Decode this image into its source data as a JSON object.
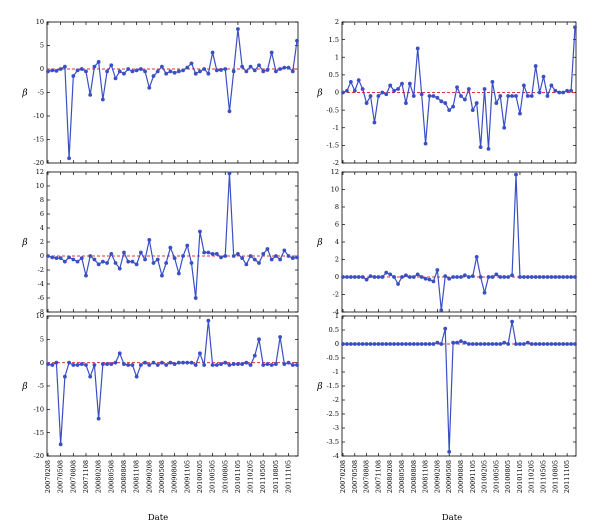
{
  "chart_data": [
    {
      "type": "line",
      "ylabel": "β",
      "ylim": [
        -20,
        10
      ],
      "yticks": [
        10,
        5,
        0,
        -5,
        -10,
        -15,
        -20
      ],
      "reference_line": 0,
      "values": [
        -0.5,
        -0.3,
        -0.4,
        0,
        0.5,
        -19,
        -1.5,
        -0.3,
        0,
        -0.5,
        -5.5,
        0.5,
        1.5,
        -6.5,
        -0.5,
        0.8,
        -2,
        -0.5,
        -1,
        0,
        -0.5,
        -0.3,
        0,
        -0.5,
        -4,
        -1.5,
        -0.5,
        0.5,
        -1,
        -0.5,
        -0.8,
        -0.5,
        -0.3,
        0.3,
        1.2,
        -1,
        -0.5,
        0,
        -1,
        3.5,
        -0.3,
        -0.2,
        0,
        -9,
        -0.5,
        8.5,
        0.5,
        -0.5,
        0.5,
        -0.3,
        0.8,
        -0.5,
        -0.2,
        3.5,
        -0.5,
        0,
        0.3,
        0.3,
        -0.5,
        6
      ]
    },
    {
      "type": "line",
      "ylabel": "β",
      "ylim": [
        -2,
        2
      ],
      "yticks": [
        2,
        1.5,
        1,
        0.5,
        0,
        -0.5,
        -1,
        -1.5,
        -2
      ],
      "reference_line": 0,
      "values": [
        0,
        0.05,
        0.3,
        0.05,
        0.35,
        0.1,
        -0.3,
        -0.1,
        -0.85,
        -0.1,
        0,
        -0.05,
        0.2,
        0.05,
        0.1,
        0.25,
        -0.3,
        0.25,
        -0.1,
        1.25,
        -0.05,
        -1.45,
        -0.1,
        -0.1,
        -0.15,
        -0.25,
        -0.3,
        -0.5,
        -0.4,
        0.15,
        -0.1,
        -0.2,
        0.1,
        -0.5,
        -0.3,
        -1.55,
        0.1,
        -1.6,
        0.3,
        -0.3,
        -0.1,
        -1,
        -0.1,
        -0.1,
        -0.1,
        -0.6,
        0.2,
        -0.1,
        -0.1,
        0.75,
        0,
        0.45,
        -0.1,
        0.2,
        0.05,
        0,
        0,
        0.05,
        0.05,
        1.85
      ]
    },
    {
      "type": "line",
      "ylabel": "β",
      "ylim": [
        -8,
        12
      ],
      "yticks": [
        12,
        10,
        8,
        6,
        4,
        2,
        0,
        -2,
        -4,
        -6,
        -8
      ],
      "reference_line": 0,
      "values": [
        0,
        -0.2,
        -0.3,
        -0.3,
        -0.8,
        -0.2,
        -0.5,
        -0.8,
        -0.3,
        -2.8,
        0,
        -0.5,
        -1.2,
        -0.8,
        -1,
        0.3,
        -1,
        -1.8,
        0.5,
        -0.8,
        -0.8,
        -1.2,
        0.5,
        -0.5,
        2.3,
        -1,
        -0.5,
        -2.8,
        -1,
        1.2,
        -0.3,
        -2.5,
        0,
        1.5,
        -1,
        -6,
        3.5,
        0.5,
        0.5,
        0.3,
        0.3,
        -0.2,
        0,
        11.8,
        0,
        0.3,
        -0.3,
        -1.2,
        0,
        -0.5,
        -1,
        0.3,
        1,
        -0.5,
        0,
        -0.5,
        0.8,
        0,
        -0.3,
        -0.2
      ]
    },
    {
      "type": "line",
      "ylabel": "β",
      "ylim": [
        -4,
        12
      ],
      "yticks": [
        12,
        10,
        8,
        6,
        4,
        2,
        0,
        -2,
        -4
      ],
      "reference_line": 0,
      "values": [
        0,
        0,
        0,
        0,
        0,
        0,
        -0.3,
        0.1,
        0,
        0,
        0,
        0.5,
        0.3,
        0,
        -0.8,
        0,
        0.2,
        0,
        0,
        0.3,
        0,
        -0.2,
        -0.3,
        -0.5,
        0.8,
        -3.8,
        0.1,
        -0.2,
        0,
        0,
        0,
        0.2,
        0,
        0.1,
        2.3,
        0,
        -1.8,
        0,
        0,
        0.3,
        0,
        0,
        0,
        0.2,
        11.7,
        0,
        0,
        0,
        0,
        0,
        0,
        0,
        0,
        0,
        0,
        0,
        0,
        0,
        0,
        0
      ]
    },
    {
      "type": "line",
      "ylabel": "β",
      "ylim": [
        -20,
        10
      ],
      "yticks": [
        10,
        5,
        0,
        -5,
        -10,
        -15,
        -20
      ],
      "reference_line": 0,
      "values": [
        -0.3,
        -0.5,
        0,
        -17.5,
        -3,
        0,
        -0.5,
        -0.5,
        -0.3,
        -0.5,
        -3,
        -0.5,
        -12,
        -0.3,
        -0.3,
        -0.3,
        0,
        2,
        -0.3,
        -0.5,
        -0.5,
        -3,
        -0.5,
        0,
        -0.5,
        0,
        -0.5,
        0,
        -0.5,
        0,
        -0.3,
        0,
        0,
        0,
        0,
        -0.5,
        2,
        -0.5,
        9,
        -0.5,
        -0.5,
        -0.3,
        0,
        -0.5,
        -0.3,
        -0.3,
        -0.3,
        0,
        -0.5,
        1.5,
        5,
        -0.5,
        -0.3,
        -0.5,
        -0.3,
        5.5,
        -0.3,
        0,
        -0.5,
        -0.5
      ]
    },
    {
      "type": "line",
      "ylabel": "β",
      "ylim": [
        -4,
        1
      ],
      "yticks": [
        1,
        0.5,
        0,
        -0.5,
        -1,
        -1.5,
        -2,
        -2.5,
        -3,
        -3.5,
        -4
      ],
      "reference_line": 0,
      "values": [
        0,
        0,
        0,
        0,
        0,
        0,
        0,
        0,
        0,
        0,
        0,
        0,
        0,
        0,
        0,
        0,
        0,
        0,
        0,
        0,
        0,
        0,
        0,
        0,
        0.05,
        0,
        0.55,
        -3.85,
        0.05,
        0.05,
        0.1,
        0.05,
        0,
        0,
        0,
        0,
        0,
        0,
        0,
        0,
        0,
        0.05,
        0,
        0.8,
        0,
        0,
        0,
        0.05,
        0,
        0,
        0,
        0,
        0,
        0,
        0,
        0,
        0,
        0,
        0,
        0
      ]
    }
  ],
  "x_tick_labels": [
    "20070208",
    "20070508",
    "20070808",
    "20071108",
    "20080208",
    "20080508",
    "20080808",
    "20081108",
    "20090208",
    "20090508",
    "20090808",
    "20091105",
    "20100205",
    "20100505",
    "20100805",
    "20101105",
    "20110205",
    "20110505",
    "20110805",
    "20111105"
  ],
  "x_tick_index": [
    0,
    3,
    6,
    9,
    12,
    15,
    18,
    21,
    24,
    27,
    30,
    33,
    36,
    39,
    42,
    45,
    48,
    51,
    54,
    57
  ],
  "xlabel": "Date",
  "colors": {
    "series": "#3a4fc4",
    "reference": "#e0303a",
    "frame": "#000000"
  }
}
